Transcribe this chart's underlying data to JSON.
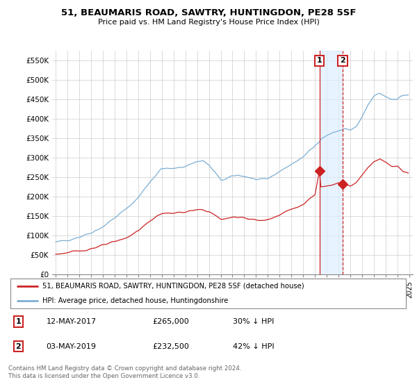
{
  "title": "51, BEAUMARIS ROAD, SAWTRY, HUNTINGDON, PE28 5SF",
  "subtitle": "Price paid vs. HM Land Registry's House Price Index (HPI)",
  "ylabel_ticks": [
    "£0",
    "£50K",
    "£100K",
    "£150K",
    "£200K",
    "£250K",
    "£300K",
    "£350K",
    "£400K",
    "£450K",
    "£500K",
    "£550K"
  ],
  "ytick_values": [
    0,
    50000,
    100000,
    150000,
    200000,
    250000,
    300000,
    350000,
    400000,
    450000,
    500000,
    550000
  ],
  "ylim": [
    0,
    575000
  ],
  "hpi_color": "#7bafd4",
  "price_color": "#cc2222",
  "sale1_x": 2017.37,
  "sale2_x": 2019.34,
  "sale1_price": 265000,
  "sale2_price": 232500,
  "legend_house": "51, BEAUMARIS ROAD, SAWTRY, HUNTINGDON, PE28 5SF (detached house)",
  "legend_hpi": "HPI: Average price, detached house, Huntingdonshire",
  "s1_date": "12-MAY-2017",
  "s2_date": "03-MAY-2019",
  "s1_pct": "30% ↓ HPI",
  "s2_pct": "42% ↓ HPI",
  "footer": "Contains HM Land Registry data © Crown copyright and database right 2024.\nThis data is licensed under the Open Government Licence v3.0.",
  "xlim_left": 1994.7,
  "xlim_right": 2025.3
}
